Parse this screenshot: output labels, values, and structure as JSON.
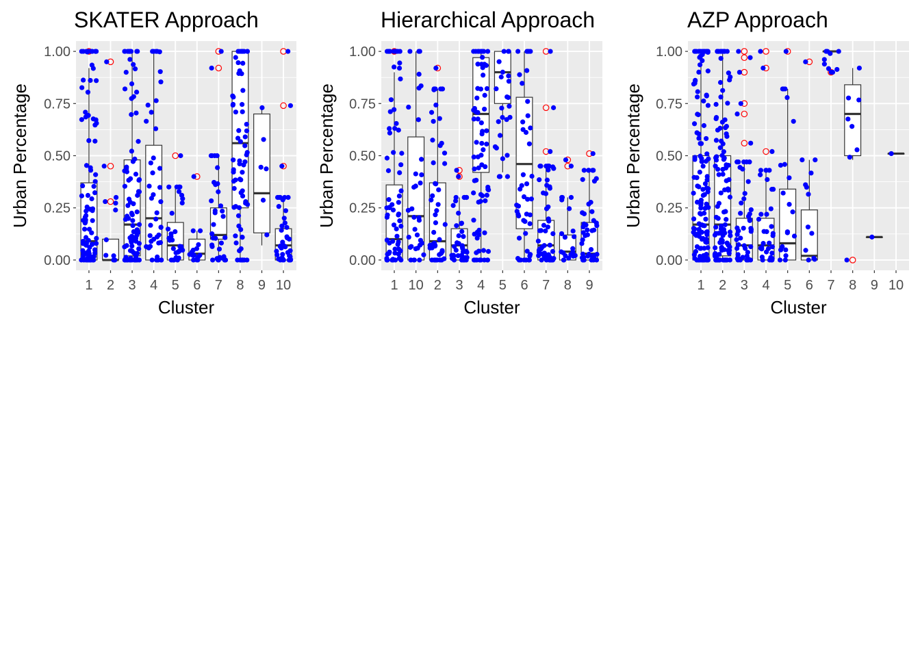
{
  "chart_data": [
    {
      "type": "box",
      "title": "SKATER Approach",
      "xlabel": "Cluster",
      "ylabel": "Urban Percentage",
      "ylim": [
        0,
        1
      ],
      "yticks": [
        "0.00",
        "0.25",
        "0.50",
        "0.75",
        "1.00"
      ],
      "grid": true,
      "categories": [
        "1",
        "2",
        "3",
        "4",
        "5",
        "6",
        "7",
        "8",
        "9",
        "10"
      ],
      "boxes": [
        {
          "q1": 0.0,
          "median": 0.09,
          "q3": 0.37,
          "wmin": 0.0,
          "wmax": 0.92,
          "outliers": [
            1.0
          ],
          "n": 95,
          "spread": [
            0,
            1
          ]
        },
        {
          "q1": 0.0,
          "median": 0.0,
          "q3": 0.1,
          "wmin": 0.0,
          "wmax": 0.1,
          "outliers": [
            0.28,
            0.45,
            0.95
          ],
          "n": 9,
          "spread": [
            0,
            0.3
          ]
        },
        {
          "q1": 0.02,
          "median": 0.17,
          "q3": 0.48,
          "wmin": 0.0,
          "wmax": 1.0,
          "outliers": [],
          "n": 95,
          "spread": [
            0,
            1
          ]
        },
        {
          "q1": 0.0,
          "median": 0.2,
          "q3": 0.55,
          "wmin": 0.0,
          "wmax": 1.0,
          "outliers": [],
          "n": 45,
          "spread": [
            0,
            1
          ]
        },
        {
          "q1": 0.0,
          "median": 0.07,
          "q3": 0.18,
          "wmin": 0.0,
          "wmax": 0.35,
          "outliers": [
            0.5
          ],
          "n": 30,
          "spread": [
            0,
            0.35
          ]
        },
        {
          "q1": 0.0,
          "median": 0.03,
          "q3": 0.1,
          "wmin": 0.0,
          "wmax": 0.14,
          "outliers": [
            0.4
          ],
          "n": 15,
          "spread": [
            0,
            0.14
          ]
        },
        {
          "q1": 0.1,
          "median": 0.12,
          "q3": 0.25,
          "wmin": 0.0,
          "wmax": 0.5,
          "outliers": [
            0.92,
            1.0
          ],
          "n": 35,
          "spread": [
            0,
            0.5
          ]
        },
        {
          "q1": 0.25,
          "median": 0.56,
          "q3": 1.0,
          "wmin": 0.0,
          "wmax": 1.0,
          "outliers": [],
          "n": 70,
          "spread": [
            0,
            1
          ]
        },
        {
          "q1": 0.13,
          "median": 0.32,
          "q3": 0.7,
          "wmin": 0.07,
          "wmax": 0.73,
          "outliers": [],
          "n": 6,
          "spread": [
            0.07,
            0.73
          ]
        },
        {
          "q1": 0.0,
          "median": 0.07,
          "q3": 0.15,
          "wmin": 0.0,
          "wmax": 0.3,
          "outliers": [
            0.45,
            0.74,
            1.0
          ],
          "n": 40,
          "spread": [
            0,
            0.3
          ]
        }
      ]
    },
    {
      "type": "box",
      "title": "Hierarchical Approach",
      "xlabel": "Cluster",
      "ylabel": "Urban Percentage",
      "ylim": [
        0,
        1
      ],
      "yticks": [
        "0.00",
        "0.25",
        "0.50",
        "0.75",
        "1.00"
      ],
      "grid": true,
      "categories": [
        "1",
        "10",
        "2",
        "3",
        "4",
        "5",
        "6",
        "7",
        "8",
        "9"
      ],
      "boxes": [
        {
          "q1": 0.0,
          "median": 0.1,
          "q3": 0.36,
          "wmin": 0.0,
          "wmax": 0.9,
          "outliers": [
            1.0
          ],
          "n": 75,
          "spread": [
            0,
            1
          ]
        },
        {
          "q1": 0.0,
          "median": 0.21,
          "q3": 0.59,
          "wmin": 0.0,
          "wmax": 1.0,
          "outliers": [],
          "n": 35,
          "spread": [
            0,
            1
          ]
        },
        {
          "q1": 0.0,
          "median": 0.09,
          "q3": 0.37,
          "wmin": 0.0,
          "wmax": 0.82,
          "outliers": [
            0.92
          ],
          "n": 50,
          "spread": [
            0,
            0.82
          ]
        },
        {
          "q1": 0.0,
          "median": 0.07,
          "q3": 0.15,
          "wmin": 0.0,
          "wmax": 0.3,
          "outliers": [
            0.4,
            0.43
          ],
          "n": 40,
          "spread": [
            0,
            0.3
          ]
        },
        {
          "q1": 0.42,
          "median": 0.7,
          "q3": 0.97,
          "wmin": 0.0,
          "wmax": 1.0,
          "outliers": [],
          "n": 75,
          "spread": [
            0,
            1
          ]
        },
        {
          "q1": 0.75,
          "median": 0.9,
          "q3": 1.0,
          "wmin": 0.42,
          "wmax": 1.0,
          "outliers": [],
          "n": 25,
          "spread": [
            0.4,
            1
          ]
        },
        {
          "q1": 0.15,
          "median": 0.46,
          "q3": 0.78,
          "wmin": 0.0,
          "wmax": 1.0,
          "outliers": [],
          "n": 45,
          "spread": [
            0,
            1
          ]
        },
        {
          "q1": 0.0,
          "median": 0.07,
          "q3": 0.19,
          "wmin": 0.0,
          "wmax": 0.45,
          "outliers": [
            0.52,
            0.73,
            1.0
          ],
          "n": 55,
          "spread": [
            0,
            0.45
          ]
        },
        {
          "q1": 0.0,
          "median": 0.04,
          "q3": 0.12,
          "wmin": 0.0,
          "wmax": 0.3,
          "outliers": [
            0.45,
            0.48
          ],
          "n": 20,
          "spread": [
            0,
            0.3
          ]
        },
        {
          "q1": 0.0,
          "median": 0.03,
          "q3": 0.18,
          "wmin": 0.0,
          "wmax": 0.43,
          "outliers": [
            0.51
          ],
          "n": 45,
          "spread": [
            0,
            0.43
          ]
        }
      ]
    },
    {
      "type": "box",
      "title": "AZP Approach",
      "xlabel": "Cluster",
      "ylabel": "Urban Percentage",
      "ylim": [
        0,
        1
      ],
      "yticks": [
        "0.00",
        "0.25",
        "0.50",
        "0.75",
        "1.00"
      ],
      "grid": true,
      "categories": [
        "1",
        "2",
        "3",
        "4",
        "5",
        "6",
        "7",
        "8",
        "9",
        "10"
      ],
      "boxes": [
        {
          "q1": 0.0,
          "median": 0.17,
          "q3": 0.5,
          "wmin": 0.0,
          "wmax": 1.0,
          "outliers": [],
          "n": 140,
          "spread": [
            0,
            1
          ]
        },
        {
          "q1": 0.02,
          "median": 0.17,
          "q3": 0.5,
          "wmin": 0.0,
          "wmax": 1.0,
          "outliers": [],
          "n": 120,
          "spread": [
            0,
            1
          ]
        },
        {
          "q1": 0.0,
          "median": 0.07,
          "q3": 0.2,
          "wmin": 0.0,
          "wmax": 0.47,
          "outliers": [
            0.56,
            0.7,
            0.75,
            0.9,
            0.97,
            1.0
          ],
          "n": 45,
          "spread": [
            0,
            0.47
          ]
        },
        {
          "q1": 0.0,
          "median": 0.07,
          "q3": 0.2,
          "wmin": 0.0,
          "wmax": 0.43,
          "outliers": [
            0.52,
            0.92,
            1.0
          ],
          "n": 35,
          "spread": [
            0,
            0.43
          ]
        },
        {
          "q1": 0.0,
          "median": 0.08,
          "q3": 0.34,
          "wmin": 0.0,
          "wmax": 0.82,
          "outliers": [
            1.0
          ],
          "n": 20,
          "spread": [
            0,
            0.82
          ]
        },
        {
          "q1": 0.0,
          "median": 0.02,
          "q3": 0.24,
          "wmin": 0.0,
          "wmax": 0.48,
          "outliers": [
            0.95
          ],
          "n": 12,
          "spread": [
            0,
            0.48
          ]
        },
        {
          "q1": 1.0,
          "median": 1.0,
          "q3": 1.0,
          "wmin": 1.0,
          "wmax": 1.0,
          "outliers": [
            0.9
          ],
          "n": 10,
          "spread": [
            0.9,
            1
          ]
        },
        {
          "q1": 0.5,
          "median": 0.7,
          "q3": 0.84,
          "wmin": 0.48,
          "wmax": 0.92,
          "outliers": [
            0.0
          ],
          "n": 7,
          "spread": [
            0.48,
            0.92
          ]
        },
        {
          "q1": 0.11,
          "median": 0.11,
          "q3": 0.11,
          "wmin": 0.11,
          "wmax": 0.11,
          "outliers": [],
          "n": 1,
          "spread": [
            0.11,
            0.11
          ]
        },
        {
          "q1": 0.51,
          "median": 0.51,
          "q3": 0.51,
          "wmin": 0.51,
          "wmax": 0.51,
          "outliers": [],
          "n": 1,
          "spread": [
            0.51,
            0.51
          ]
        }
      ]
    }
  ],
  "colors": {
    "panel_background": "#ebebeb",
    "grid": "#ffffff",
    "box_fill": "#ffffff",
    "box_line": "#333333",
    "points": "#0000ff",
    "outliers": "#ff0000"
  }
}
